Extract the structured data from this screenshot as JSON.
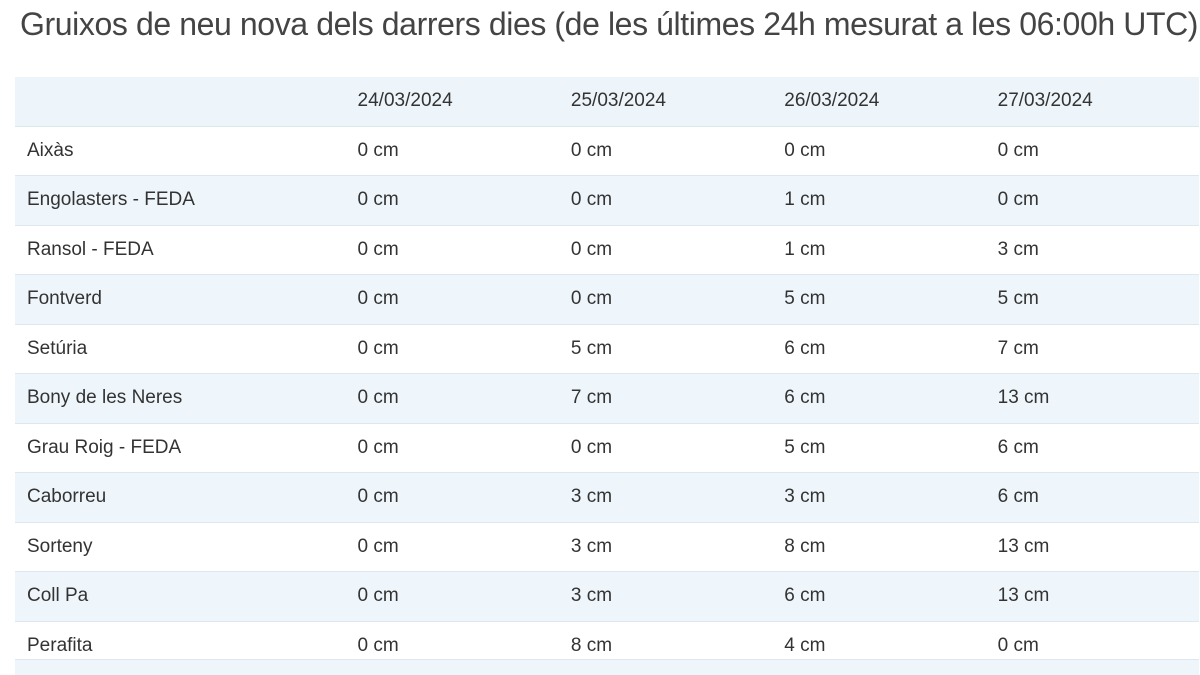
{
  "title": "Gruixos de neu nova dels darrers dies (de les últimes 24h mesurat a les 06:00h UTC)",
  "columns": [
    "",
    "24/03/2024",
    "25/03/2024",
    "26/03/2024",
    "27/03/2024"
  ],
  "rows": [
    {
      "name": "Aixàs",
      "values": [
        "0 cm",
        "0 cm",
        "0 cm",
        "0 cm"
      ]
    },
    {
      "name": "Engolasters - FEDA",
      "values": [
        "0 cm",
        "0 cm",
        "1 cm",
        "0 cm"
      ]
    },
    {
      "name": "Ransol - FEDA",
      "values": [
        "0 cm",
        "0 cm",
        "1 cm",
        "3 cm"
      ]
    },
    {
      "name": "Fontverd",
      "values": [
        "0 cm",
        "0 cm",
        "5 cm",
        "5 cm"
      ]
    },
    {
      "name": "Setúria",
      "values": [
        "0 cm",
        "5 cm",
        "6 cm",
        "7 cm"
      ]
    },
    {
      "name": "Bony de les Neres",
      "values": [
        "0 cm",
        "7 cm",
        "6 cm",
        "13 cm"
      ]
    },
    {
      "name": "Grau Roig - FEDA",
      "values": [
        "0 cm",
        "0 cm",
        "5 cm",
        "6 cm"
      ]
    },
    {
      "name": "Caborreu",
      "values": [
        "0 cm",
        "3 cm",
        "3 cm",
        "6 cm"
      ]
    },
    {
      "name": "Sorteny",
      "values": [
        "0 cm",
        "3 cm",
        "8 cm",
        "13 cm"
      ]
    },
    {
      "name": "Coll Pa",
      "values": [
        "0 cm",
        "3 cm",
        "6 cm",
        "13 cm"
      ]
    },
    {
      "name": "Perafita",
      "values": [
        "0 cm",
        "8 cm",
        "4 cm",
        "0 cm"
      ]
    }
  ]
}
